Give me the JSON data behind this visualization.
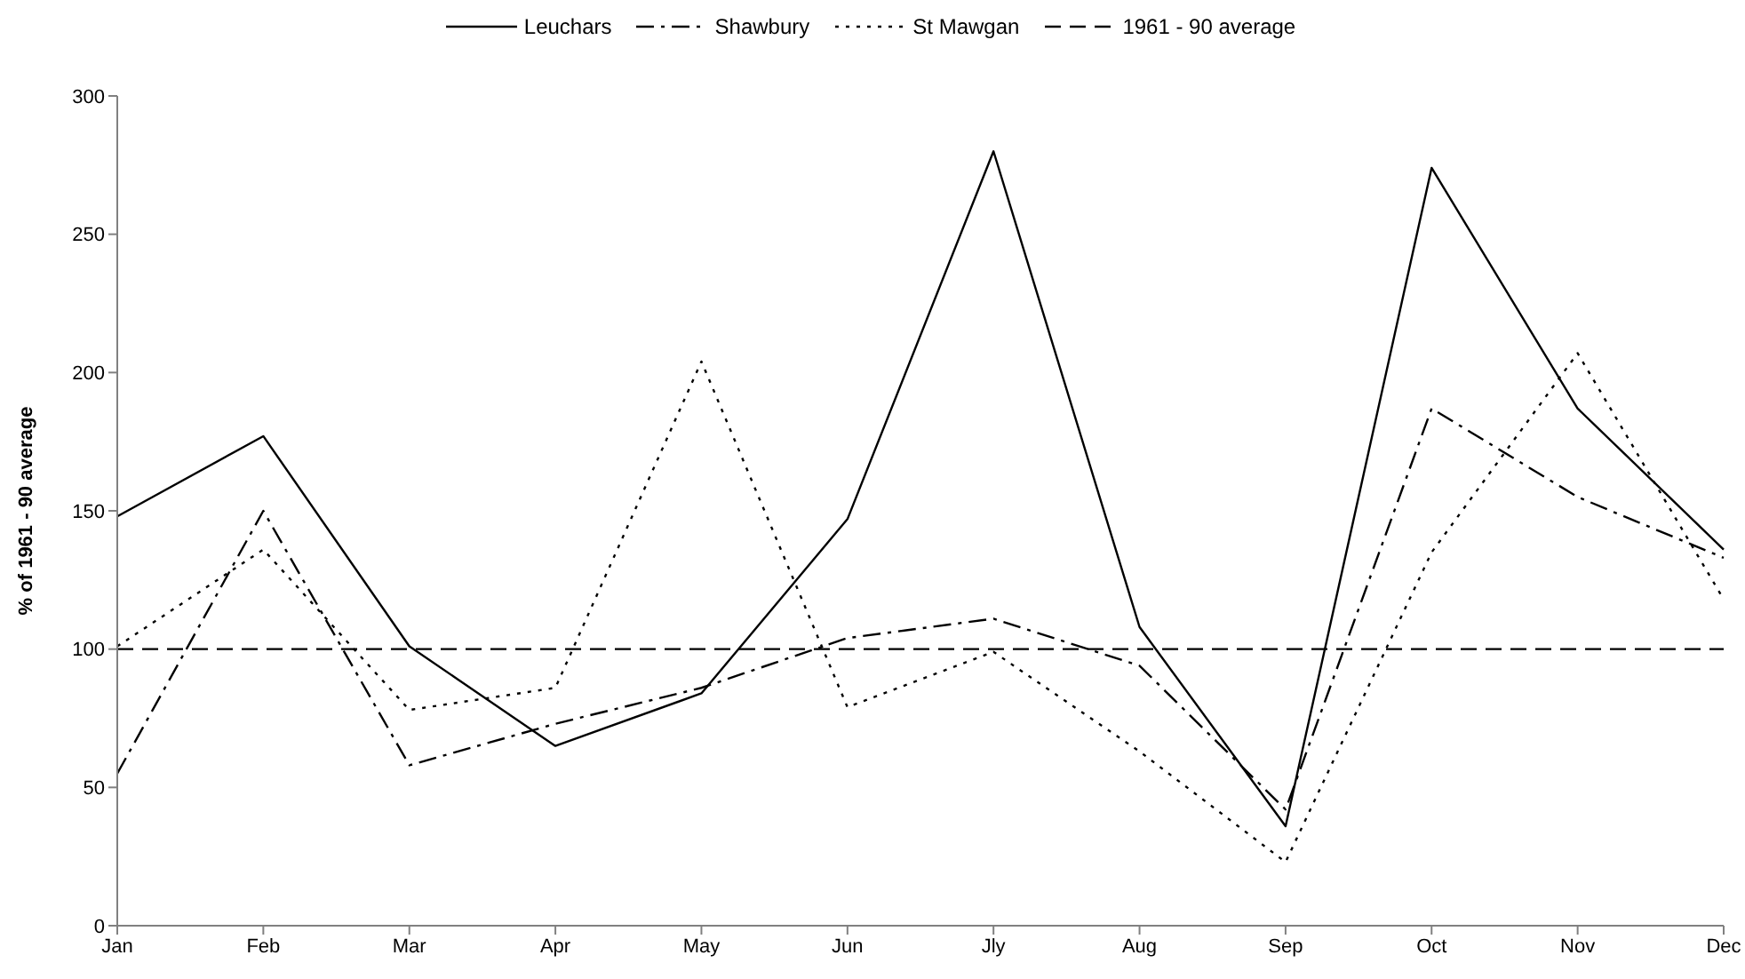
{
  "chart_data": {
    "type": "line",
    "ylabel": "% of 1961 - 90 average",
    "categories": [
      "Jan",
      "Feb",
      "Mar",
      "Apr",
      "May",
      "Jun",
      "Jly",
      "Aug",
      "Sep",
      "Oct",
      "Nov",
      "Dec"
    ],
    "series": [
      {
        "name": "Leuchars",
        "color": "#000000",
        "line_style": "solid",
        "values": [
          148,
          177,
          101,
          65,
          84,
          147,
          280,
          108,
          36,
          274,
          187,
          136
        ]
      },
      {
        "name": "Shawbury",
        "color": "#000000",
        "line_style": "dashdot",
        "values": [
          55,
          150,
          58,
          73,
          86,
          104,
          111,
          94,
          42,
          187,
          155,
          133
        ]
      },
      {
        "name": "St Mawgan",
        "color": "#000000",
        "line_style": "dotted",
        "values": [
          101,
          136,
          78,
          86,
          204,
          79,
          99,
          63,
          23,
          135,
          207,
          118
        ]
      },
      {
        "name": "1961 - 90 average",
        "color": "#000000",
        "line_style": "dashed",
        "values": [
          100,
          100,
          100,
          100,
          100,
          100,
          100,
          100,
          100,
          100,
          100,
          100
        ]
      }
    ],
    "ylim": [
      0,
      300
    ],
    "yticks": [
      0,
      50,
      100,
      150,
      200,
      250,
      300
    ],
    "legend": "top",
    "marker": "none"
  }
}
